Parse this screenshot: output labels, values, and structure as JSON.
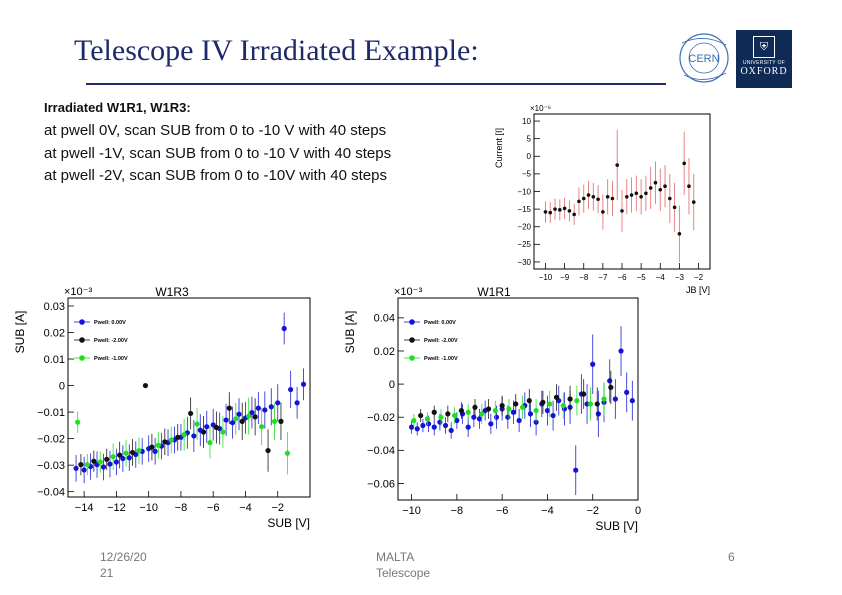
{
  "slide": {
    "title": "Telescope IV Irradiated Example:",
    "lines": [
      "Irradiated W1R1, W1R3:",
      "at pwell  0V, scan SUB from 0 to -10 V with 40 steps",
      "at pwell  -1V, scan SUB from 0 to -10 V with 40 steps",
      "at pwell -2V, scan SUB from 0 to -10V with 40 steps"
    ],
    "logos": {
      "cern": "CERN",
      "oxford_small": "UNIVERSITY OF",
      "oxford": "OXFORD"
    },
    "footer": {
      "date": "12/26/20",
      "number": "21",
      "event_line1": "MALTA",
      "event_line2": "Telescope",
      "page": "6"
    }
  },
  "colors": {
    "title": "#1f2a6b",
    "blue": "#1414d8",
    "black": "#111111",
    "green": "#22dd22",
    "red": "#e06060"
  },
  "chart_data": [
    {
      "type": "scatter",
      "ylabel": "Current [I]",
      "xlabel": "JB [V]",
      "y_exponent": "×10⁻⁶",
      "xlim": [
        -10.6,
        -1.4
      ],
      "ylim": [
        -32,
        12
      ],
      "xticks": [
        -10,
        -9,
        -8,
        -7,
        -6,
        -5,
        -4,
        -3,
        -2
      ],
      "yticks": [
        10,
        5,
        0,
        -5,
        -10,
        -15,
        -20,
        -25,
        -30
      ],
      "series": [
        {
          "color": "black",
          "x": [
            -10.0,
            -9.75,
            -9.5,
            -9.25,
            -9.0,
            -8.75,
            -8.5,
            -8.25,
            -8.0,
            -7.75,
            -7.5,
            -7.25,
            -7.0,
            -6.75,
            -6.5,
            -6.25,
            -6.0,
            -5.75,
            -5.5,
            -5.25,
            -5.0,
            -4.75,
            -4.5,
            -4.25,
            -4.0,
            -3.75,
            -3.5,
            -3.25,
            -3.0,
            -2.75,
            -2.5,
            -2.25,
            -2.0
          ],
          "y": [
            -15.8,
            -16.0,
            -15.0,
            -15.2,
            -14.8,
            -15.5,
            -16.5,
            -12.8,
            -12.0,
            -11.0,
            -11.5,
            -12.2,
            -15.8,
            -11.5,
            -12.0,
            -2.5,
            -15.5,
            -11.5,
            -11.0,
            -10.5,
            -11.5,
            -10.5,
            -9.0,
            -7.5,
            -9.5,
            -8.5,
            -12.0,
            -14.5,
            -22.0,
            -2.0,
            -8.5,
            -13.0,
            null
          ],
          "err": [
            3,
            3,
            3,
            3,
            3,
            3,
            3,
            4,
            4,
            4,
            4,
            4,
            5,
            5,
            5,
            10,
            6,
            5,
            5,
            5,
            5,
            5,
            6,
            6,
            6,
            6,
            7,
            7,
            8,
            9,
            8,
            8,
            0
          ]
        }
      ]
    },
    {
      "type": "scatter",
      "title": "W1R3",
      "xlabel": "SUB [V]",
      "ylabel": "SUB [A]",
      "y_exponent": "×10⁻³",
      "xlim": [
        -15,
        0
      ],
      "ylim": [
        -0.042,
        0.033
      ],
      "xticks": [
        -14,
        -12,
        -10,
        -8,
        -6,
        -4,
        -2
      ],
      "yticks": [
        0.03,
        0.02,
        0.01,
        0,
        -0.01,
        -0.02,
        -0.03,
        -0.04
      ],
      "ytick_labels": [
        "0.03",
        "0.02",
        "0.01",
        "0",
        "−0.01",
        "−0.02",
        "−0.03",
        "−0.04"
      ],
      "legend": [
        "Pwell: 0.00V",
        "Pwell: -2.00V",
        "Pwell: -1.00V"
      ],
      "series": [
        {
          "name": "Pwell: 0.00V",
          "color": "blue",
          "x": [
            -14.5,
            -14.0,
            -13.6,
            -13.2,
            -12.8,
            -12.4,
            -12.0,
            -11.6,
            -11.2,
            -10.8,
            -10.4,
            -10.0,
            -9.6,
            -9.2,
            -8.8,
            -8.4,
            -8.0,
            -7.6,
            -7.2,
            -6.8,
            -6.4,
            -6.0,
            -5.6,
            -5.2,
            -4.8,
            -4.4,
            -4.0,
            -3.6,
            -3.2,
            -2.8,
            -2.4,
            -2.0,
            -1.6,
            -1.2,
            -0.8,
            -0.4
          ],
          "y": [
            -0.0312,
            -0.0318,
            -0.0305,
            -0.0298,
            -0.0307,
            -0.0296,
            -0.0288,
            -0.0275,
            -0.0272,
            -0.026,
            -0.0248,
            -0.0238,
            -0.0248,
            -0.0228,
            -0.0215,
            -0.0205,
            -0.0195,
            -0.0178,
            -0.019,
            -0.0168,
            -0.0155,
            -0.0148,
            -0.0162,
            -0.013,
            -0.014,
            -0.0108,
            -0.0122,
            -0.0102,
            -0.0085,
            -0.0092,
            -0.008,
            -0.0065,
            0.0215,
            -0.0015,
            -0.0065,
            0.0005
          ],
          "err": [
            0.005,
            0.005,
            0.005,
            0.005,
            0.005,
            0.005,
            0.005,
            0.005,
            0.005,
            0.005,
            0.005,
            0.005,
            0.005,
            0.005,
            0.005,
            0.005,
            0.005,
            0.006,
            0.006,
            0.006,
            0.006,
            0.006,
            0.006,
            0.006,
            0.006,
            0.006,
            0.006,
            0.006,
            0.006,
            0.007,
            0.007,
            0.007,
            0.006,
            0.007,
            0.006,
            0.006
          ]
        },
        {
          "name": "Pwell: -2.00V",
          "color": "black",
          "x": [
            -14.2,
            -13.4,
            -12.6,
            -11.8,
            -11.0,
            -10.2,
            -9.8,
            -9.0,
            -8.2,
            -7.4,
            -6.6,
            -5.8,
            -5.0,
            -4.2,
            -3.4,
            -2.6,
            -1.8
          ],
          "y": [
            -0.0298,
            -0.0285,
            -0.0278,
            -0.0262,
            -0.0252,
            0.0,
            -0.0232,
            -0.0212,
            -0.0195,
            -0.0105,
            -0.0175,
            -0.0158,
            -0.0085,
            -0.0135,
            -0.0118,
            -0.0245,
            -0.0135
          ],
          "err": [
            0.004,
            0.004,
            0.004,
            0.005,
            0.005,
            0.0,
            0.005,
            0.005,
            0.005,
            0.006,
            0.006,
            0.006,
            0.006,
            0.007,
            0.007,
            0.008,
            0.007
          ]
        },
        {
          "name": "Pwell: -1.00V",
          "color": "green",
          "x": [
            -14.4,
            -13.8,
            -13.0,
            -12.2,
            -11.4,
            -10.6,
            -9.4,
            -8.6,
            -7.8,
            -7.0,
            -6.2,
            -5.4,
            -4.6,
            -3.8,
            -3.0,
            -2.2,
            -1.4
          ],
          "y": [
            -0.0138,
            -0.0298,
            -0.0288,
            -0.0268,
            -0.0255,
            -0.0245,
            -0.0225,
            -0.0205,
            -0.0185,
            -0.0145,
            -0.0215,
            -0.0175,
            -0.0125,
            -0.0115,
            -0.0155,
            -0.0135,
            -0.0255
          ],
          "err": [
            0.004,
            0.004,
            0.004,
            0.005,
            0.005,
            0.005,
            0.005,
            0.005,
            0.006,
            0.006,
            0.006,
            0.006,
            0.006,
            0.007,
            0.007,
            0.007,
            0.008
          ]
        }
      ]
    },
    {
      "type": "scatter",
      "title": "W1R1",
      "xlabel": "SUB [V]",
      "ylabel": "SUB [A]",
      "y_exponent": "×10⁻³",
      "xlim": [
        -10.6,
        0
      ],
      "ylim": [
        -0.07,
        0.052
      ],
      "xticks": [
        -10,
        -8,
        -6,
        -4,
        -2,
        0
      ],
      "yticks": [
        0.04,
        0.02,
        0,
        -0.02,
        -0.04,
        -0.06
      ],
      "ytick_labels": [
        "0.04",
        "0.02",
        "0",
        "−0.02",
        "−0.04",
        "−0.06"
      ],
      "legend": [
        "Pwell: 0.00V",
        "Pwell: -2.00V",
        "Pwell: -1.00V"
      ],
      "series": [
        {
          "name": "Pwell: 0.00V",
          "color": "blue",
          "x": [
            -10.0,
            -9.75,
            -9.5,
            -9.25,
            -9.0,
            -8.75,
            -8.5,
            -8.25,
            -8.0,
            -7.75,
            -7.5,
            -7.25,
            -7.0,
            -6.75,
            -6.5,
            -6.25,
            -6.0,
            -5.75,
            -5.5,
            -5.25,
            -5.0,
            -4.75,
            -4.5,
            -4.25,
            -4.0,
            -3.75,
            -3.5,
            -3.25,
            -3.0,
            -2.75,
            -2.5,
            -2.25,
            -2.0,
            -1.75,
            -1.5,
            -1.25,
            -1.0,
            -0.75,
            -0.5,
            -0.25
          ],
          "y": [
            -0.026,
            -0.027,
            -0.025,
            -0.024,
            -0.026,
            -0.023,
            -0.025,
            -0.028,
            -0.022,
            -0.018,
            -0.026,
            -0.02,
            -0.021,
            -0.016,
            -0.024,
            -0.02,
            -0.015,
            -0.02,
            -0.017,
            -0.022,
            -0.013,
            -0.018,
            -0.023,
            -0.012,
            -0.016,
            -0.019,
            -0.01,
            -0.015,
            -0.014,
            -0.052,
            -0.006,
            -0.012,
            0.012,
            -0.018,
            -0.011,
            0.002,
            -0.009,
            0.02,
            -0.005,
            -0.01
          ],
          "err": [
            0.004,
            0.004,
            0.004,
            0.005,
            0.005,
            0.005,
            0.005,
            0.005,
            0.005,
            0.006,
            0.006,
            0.006,
            0.006,
            0.006,
            0.006,
            0.007,
            0.007,
            0.007,
            0.007,
            0.007,
            0.008,
            0.008,
            0.008,
            0.008,
            0.009,
            0.009,
            0.009,
            0.01,
            0.01,
            0.015,
            0.012,
            0.012,
            0.018,
            0.014,
            0.012,
            0.013,
            0.012,
            0.015,
            0.012,
            0.012
          ]
        },
        {
          "name": "Pwell: -2.00V",
          "color": "black",
          "x": [
            -9.6,
            -9.0,
            -8.4,
            -7.8,
            -7.2,
            -6.6,
            -6.0,
            -5.4,
            -4.8,
            -4.2,
            -3.6,
            -3.0,
            -2.4,
            -1.8,
            -1.2
          ],
          "y": [
            -0.019,
            -0.017,
            -0.018,
            -0.016,
            -0.014,
            -0.015,
            -0.013,
            -0.012,
            -0.01,
            -0.011,
            -0.008,
            -0.009,
            -0.006,
            -0.012,
            -0.002
          ],
          "err": [
            0.004,
            0.004,
            0.005,
            0.005,
            0.005,
            0.006,
            0.006,
            0.006,
            0.007,
            0.007,
            0.008,
            0.008,
            0.009,
            0.01,
            0.01
          ]
        },
        {
          "name": "Pwell: -1.00V",
          "color": "green",
          "x": [
            -9.9,
            -9.3,
            -8.7,
            -8.1,
            -7.5,
            -6.9,
            -6.3,
            -5.7,
            -5.1,
            -4.5,
            -3.9,
            -3.3,
            -2.7,
            -2.1,
            -1.5
          ],
          "y": [
            -0.022,
            -0.021,
            -0.02,
            -0.019,
            -0.017,
            -0.018,
            -0.016,
            -0.015,
            -0.014,
            -0.016,
            -0.012,
            -0.013,
            -0.01,
            -0.012,
            -0.009
          ],
          "err": [
            0.004,
            0.004,
            0.005,
            0.005,
            0.005,
            0.006,
            0.006,
            0.006,
            0.007,
            0.007,
            0.008,
            0.008,
            0.009,
            0.01,
            0.01
          ]
        }
      ]
    }
  ]
}
